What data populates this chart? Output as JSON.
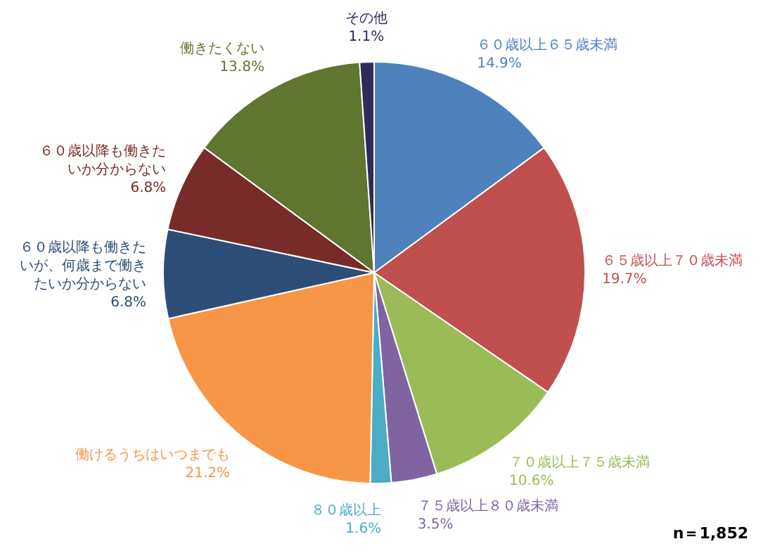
{
  "chart_data": {
    "type": "pie",
    "categories": [
      "６０歳以上６５歳未満",
      "６５歳以上７０歳未満",
      "７０歳以上７５歳未満",
      "７５歳以上８０歳未満",
      "８０歳以上",
      "働けるうちはいつまでも",
      "６０歳以降も働きたいが、何歳まで働きたいか分からない",
      "６０歳以降も働きたいか分からない",
      "働きたくない",
      "その他"
    ],
    "values": [
      14.9,
      19.7,
      10.6,
      3.5,
      1.6,
      21.2,
      6.8,
      6.8,
      13.8,
      1.1
    ],
    "value_labels": [
      "14.9%",
      "19.7%",
      "10.6%",
      "3.5%",
      "1.6%",
      "21.2%",
      "6.8%",
      "6.8%",
      "13.8%",
      "1.1%"
    ],
    "colors": [
      "#4f81bd",
      "#c0504d",
      "#9bbb59",
      "#8064a2",
      "#4bacc6",
      "#f79646",
      "#2c4d75",
      "#772c2a",
      "#5f7530",
      "#2e2b5c"
    ],
    "annotations": [
      "n＝1,852"
    ]
  }
}
